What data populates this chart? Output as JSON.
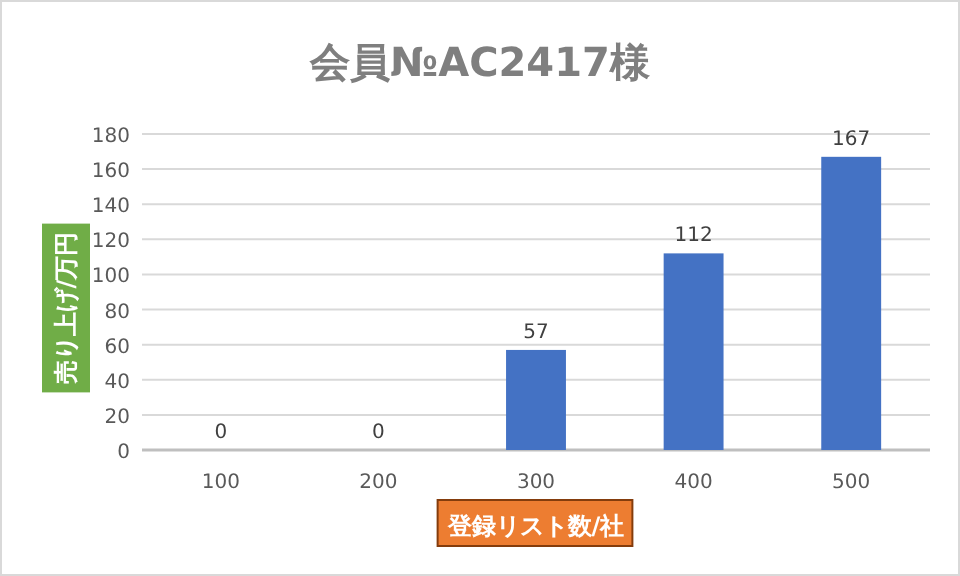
{
  "chart_data": {
    "type": "bar",
    "title": "会員№AC2417様",
    "xlabel": "登録リスト数/社",
    "ylabel": "売り上げ/万円",
    "categories": [
      "100",
      "200",
      "300",
      "400",
      "500"
    ],
    "values": [
      0,
      0,
      57,
      112,
      167
    ],
    "color": "#4472c4",
    "ylim": [
      0,
      180
    ],
    "yticks": [
      0,
      20,
      40,
      60,
      80,
      100,
      120,
      140,
      160,
      180
    ],
    "grid": "y",
    "data_labels": true
  }
}
